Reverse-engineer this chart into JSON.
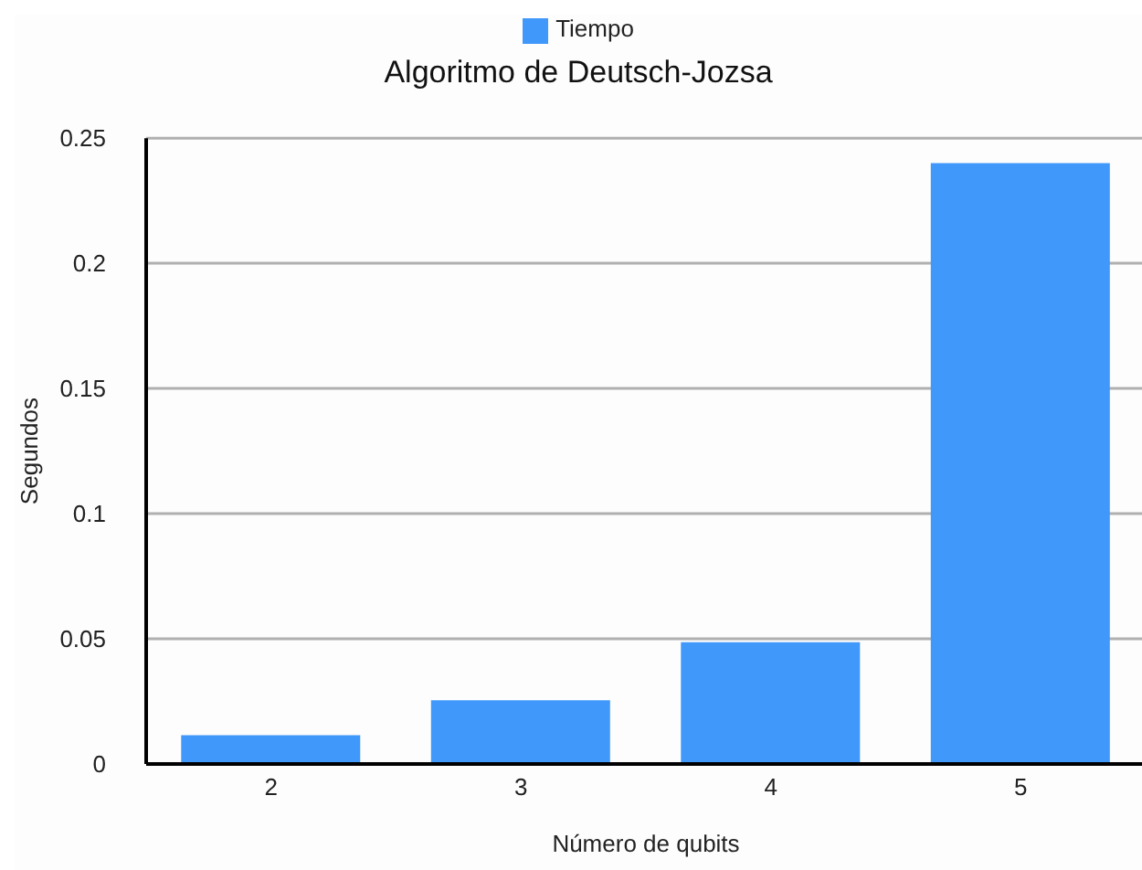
{
  "chart_data": {
    "type": "bar",
    "title": "Algoritmo de Deutsch-Jozsa",
    "xlabel": "Número de qubits",
    "ylabel": "Segundos",
    "categories": [
      "2",
      "3",
      "4",
      "5"
    ],
    "series": [
      {
        "name": "Tiempo",
        "color": "#4098fa",
        "values": [
          0.0115,
          0.0255,
          0.0486,
          0.24
        ]
      }
    ],
    "ylim": [
      0,
      0.25
    ],
    "yticks": [
      0,
      0.05,
      0.1,
      0.15,
      0.2,
      0.25
    ],
    "grid": "y",
    "legend": "top"
  }
}
